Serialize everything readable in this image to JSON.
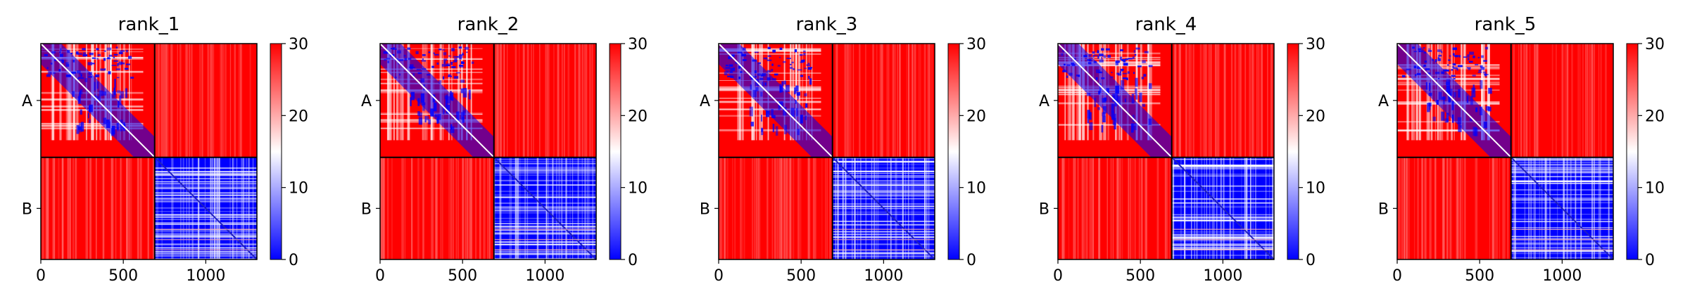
{
  "chart_data": [
    {
      "type": "heatmap",
      "title": "rank_1",
      "row_labels": [
        "A",
        "B"
      ],
      "chain_split": 690,
      "total": 1310,
      "xticks": [
        0,
        500,
        1000
      ],
      "xlim": [
        0,
        1310
      ],
      "colorbar": {
        "min": 0,
        "max": 30,
        "ticks": [
          0,
          10,
          20,
          30
        ],
        "colors": [
          "#0000ff",
          "#ffffff",
          "#ff0000"
        ]
      },
      "blocks": {
        "AA": "mixed",
        "AB": "high",
        "BA": "high",
        "BB": "low"
      }
    },
    {
      "type": "heatmap",
      "title": "rank_2",
      "row_labels": [
        "A",
        "B"
      ],
      "chain_split": 690,
      "total": 1310,
      "xticks": [
        0,
        500,
        1000
      ],
      "xlim": [
        0,
        1310
      ],
      "colorbar": {
        "min": 0,
        "max": 30,
        "ticks": [
          0,
          10,
          20,
          30
        ],
        "colors": [
          "#0000ff",
          "#ffffff",
          "#ff0000"
        ]
      },
      "blocks": {
        "AA": "mixed",
        "AB": "high",
        "BA": "high",
        "BB": "low"
      }
    },
    {
      "type": "heatmap",
      "title": "rank_3",
      "row_labels": [
        "A",
        "B"
      ],
      "chain_split": 690,
      "total": 1310,
      "xticks": [
        0,
        500,
        1000
      ],
      "xlim": [
        0,
        1310
      ],
      "colorbar": {
        "min": 0,
        "max": 30,
        "ticks": [
          0,
          10,
          20,
          30
        ],
        "colors": [
          "#0000ff",
          "#ffffff",
          "#ff0000"
        ]
      },
      "blocks": {
        "AA": "mixed",
        "AB": "high",
        "BA": "high",
        "BB": "low"
      }
    },
    {
      "type": "heatmap",
      "title": "rank_4",
      "row_labels": [
        "A",
        "B"
      ],
      "chain_split": 690,
      "total": 1310,
      "xticks": [
        0,
        500,
        1000
      ],
      "xlim": [
        0,
        1310
      ],
      "colorbar": {
        "min": 0,
        "max": 30,
        "ticks": [
          0,
          10,
          20,
          30
        ],
        "colors": [
          "#0000ff",
          "#ffffff",
          "#ff0000"
        ]
      },
      "blocks": {
        "AA": "mixed",
        "AB": "high",
        "BA": "high",
        "BB": "low"
      }
    },
    {
      "type": "heatmap",
      "title": "rank_5",
      "row_labels": [
        "A",
        "B"
      ],
      "chain_split": 690,
      "total": 1310,
      "xticks": [
        0,
        500,
        1000
      ],
      "xlim": [
        0,
        1310
      ],
      "colorbar": {
        "min": 0,
        "max": 30,
        "ticks": [
          0,
          10,
          20,
          30
        ],
        "colors": [
          "#0000ff",
          "#ffffff",
          "#ff0000"
        ]
      },
      "blocks": {
        "AA": "mixed",
        "AB": "high",
        "BA": "high",
        "BB": "low"
      }
    }
  ]
}
